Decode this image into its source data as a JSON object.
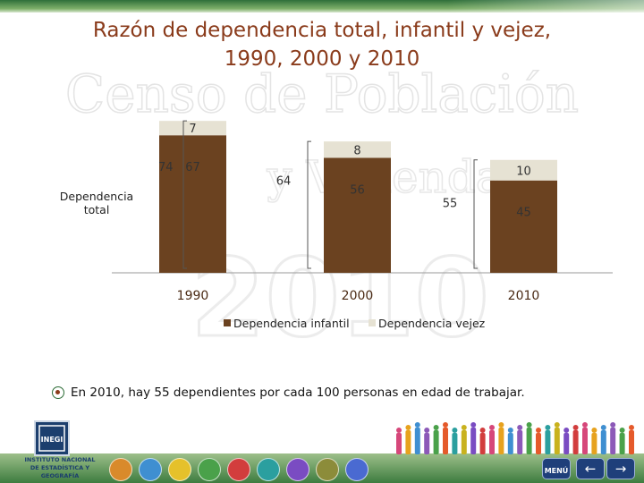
{
  "title_line1": "Razón de dependencia total, infantil y vejez,",
  "title_line2": "1990, 2000 y 2010",
  "watermark_line1": "Censo de Población",
  "watermark_line2": "y Vivienda",
  "watermark_line3": "2010",
  "side_label_line1": "Dependencia",
  "side_label_line2": "total",
  "note": "En 2010, hay 55 dependientes por cada 100 personas en edad de trabajar.",
  "logo_text_line1": "INSTITUTO NACIONAL",
  "logo_text_line2": "DE ESTADÍSTICA Y GEOGRAFÍA",
  "logo_word": "INEGI",
  "footer_label": "MENÚ",
  "colors": {
    "infantil": "#6b4220",
    "vejez": "#e6e2d3",
    "title": "#8a3b1b",
    "band": "#2f6f3a"
  },
  "icons": [
    "back-arrow-icon",
    "forward-arrow-icon",
    "bullet-icon"
  ],
  "chart_data": {
    "type": "bar",
    "stacked": true,
    "categories": [
      "1990",
      "2000",
      "2010"
    ],
    "series": [
      {
        "name": "Dependencia infantil",
        "values": [
          67,
          56,
          45
        ],
        "color": "#6b4220"
      },
      {
        "name": "Dependencia  vejez",
        "values": [
          7,
          8,
          10
        ],
        "color": "#e6e2d3"
      }
    ],
    "totals": [
      74,
      64,
      55
    ],
    "ylim": [
      0,
      80
    ],
    "legend_placement": "bottom",
    "grid": false
  }
}
